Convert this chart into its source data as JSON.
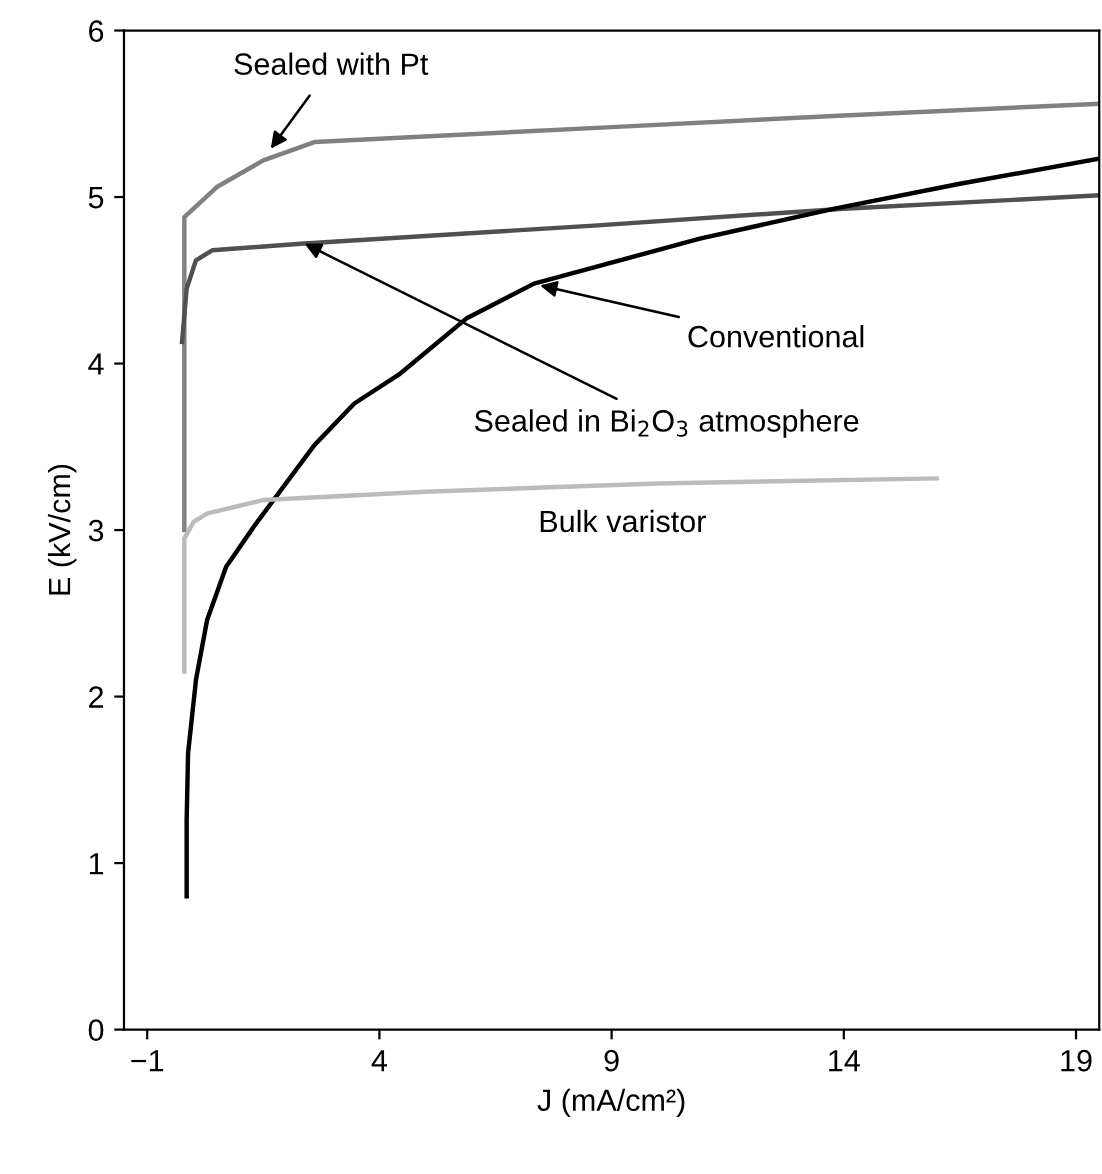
{
  "chart_data": {
    "type": "line",
    "xlabel": "J (mA/cm²)",
    "ylabel": "E (kV/cm)",
    "xlim": [
      -1.5,
      19.5
    ],
    "ylim": [
      0,
      6
    ],
    "xticks": [
      -1,
      4,
      9,
      14,
      19
    ],
    "yticks": [
      0,
      1,
      2,
      3,
      4,
      5,
      6
    ],
    "marker": "none",
    "line_style": "solid",
    "series": [
      {
        "color": "#808080",
        "x": [
          -0.2,
          -0.2,
          0.5,
          1.5,
          2.6,
          4,
          9,
          14,
          19.5
        ],
        "values": [
          3.0,
          4.88,
          5.06,
          5.22,
          5.33,
          5.35,
          5.42,
          5.49,
          5.56
        ]
      },
      {
        "color": "#505050",
        "x": [
          -0.25,
          -0.15,
          0.05,
          0.4,
          2.3,
          8.7,
          14,
          19.5
        ],
        "values": [
          4.13,
          4.45,
          4.62,
          4.68,
          4.72,
          4.83,
          4.93,
          5.01
        ]
      },
      {
        "color": "#000000",
        "x": [
          -0.15,
          -0.15,
          -0.12,
          0.05,
          0.29,
          0.7,
          1.32,
          2.6,
          3.46,
          4.45,
          5.87,
          7.33,
          10.9,
          13.8,
          16.5,
          19.5
        ],
        "values": [
          0.8,
          1.26,
          1.66,
          2.1,
          2.46,
          2.78,
          3.03,
          3.51,
          3.76,
          3.94,
          4.27,
          4.48,
          4.75,
          4.93,
          5.08,
          5.23
        ]
      },
      {
        "color": "#bbbbbb",
        "x": [
          -0.2,
          -0.2,
          0,
          0.3,
          1.5,
          5,
          10,
          16
        ],
        "values": [
          2.15,
          2.95,
          3.05,
          3.1,
          3.18,
          3.23,
          3.28,
          3.31
        ]
      }
    ],
    "annotations": [
      {
        "text": "Sealed with Pt",
        "x": 1.66,
        "y": 5.29
      },
      {
        "text": "Sealed in Bi$_{2}$O$_{3}$ atmosphere",
        "x": 2.39,
        "y": 4.72
      },
      {
        "text": "Conventional",
        "x": 7.46,
        "y": 4.47
      },
      "Bulk varistor"
    ]
  }
}
